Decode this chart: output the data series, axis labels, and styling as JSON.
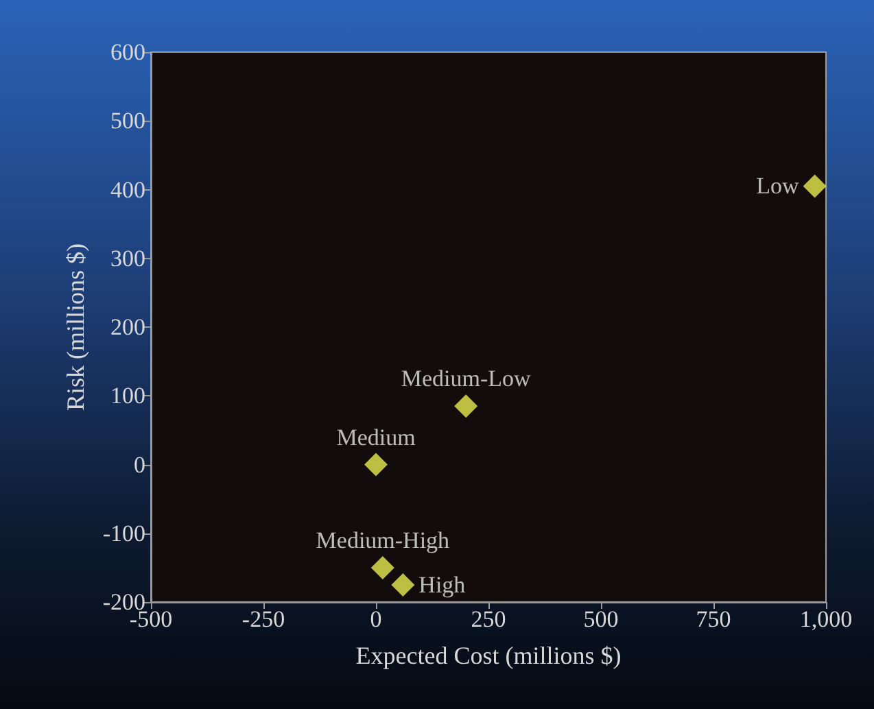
{
  "chart_data": {
    "type": "scatter",
    "xlabel": "Expected Cost (millions $)",
    "ylabel": "Risk (millions $)",
    "x": [
      975,
      200,
      0,
      15,
      60
    ],
    "values": [
      405,
      85,
      0,
      -150,
      -175
    ],
    "value_labels": [
      "Low",
      "Medium-Low",
      "Medium",
      "Medium-High",
      "High"
    ],
    "color": "#e8ec50",
    "marker": "diamond",
    "grid": false,
    "xlim": [
      -500,
      1000
    ],
    "xticks": [
      -500,
      -250,
      0,
      250,
      500,
      750,
      {
        "value": 1000,
        "label": "1,000"
      }
    ],
    "ylim": [
      -200,
      600
    ],
    "yticks": [
      -200,
      -100,
      0,
      100,
      200,
      300,
      400,
      500,
      600
    ]
  }
}
